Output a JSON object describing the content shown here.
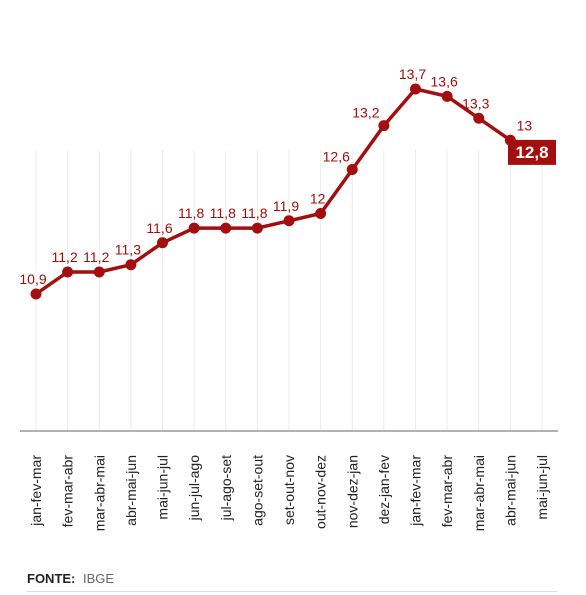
{
  "chart_data": {
    "type": "line",
    "title": "",
    "xlabel": "",
    "ylabel": "",
    "categories": [
      "jan-fev-mar",
      "fev-mar-abr",
      "mar-abr-mai",
      "abr-mai-jun",
      "mai-jun-jul",
      "jun-jul-ago",
      "jul-ago-set",
      "ago-set-out",
      "set-out-nov",
      "out-nov-dez",
      "nov-dez-jan",
      "dez-jan-fev",
      "jan-fev-mar",
      "fev-mar-abr",
      "mar-abr-mai",
      "abr-mai-jun",
      "mai-jun-jul"
    ],
    "values": [
      10.9,
      11.2,
      11.2,
      11.3,
      11.6,
      11.8,
      11.8,
      11.8,
      11.9,
      12,
      12.6,
      13.2,
      13.7,
      13.6,
      13.3,
      13,
      12.8
    ],
    "value_labels": [
      "10,9",
      "11,2",
      "11,2",
      "11,3",
      "11,6",
      "11,8",
      "11,8",
      "11,8",
      "11,9",
      "12",
      "12,6",
      "13,2",
      "13,7",
      "13,6",
      "13,3",
      "13",
      "12,8"
    ],
    "highlight_last": true,
    "grid": "vertical",
    "colors": {
      "line": "#a50e0e",
      "label": "#a50e0e",
      "highlight_bg": "#a50e0e",
      "highlight_text": "#ffffff",
      "grid": "#ececec",
      "axis": "#999999",
      "tick": "#222222"
    }
  },
  "source": {
    "label": "FONTE:",
    "value": "IBGE"
  }
}
